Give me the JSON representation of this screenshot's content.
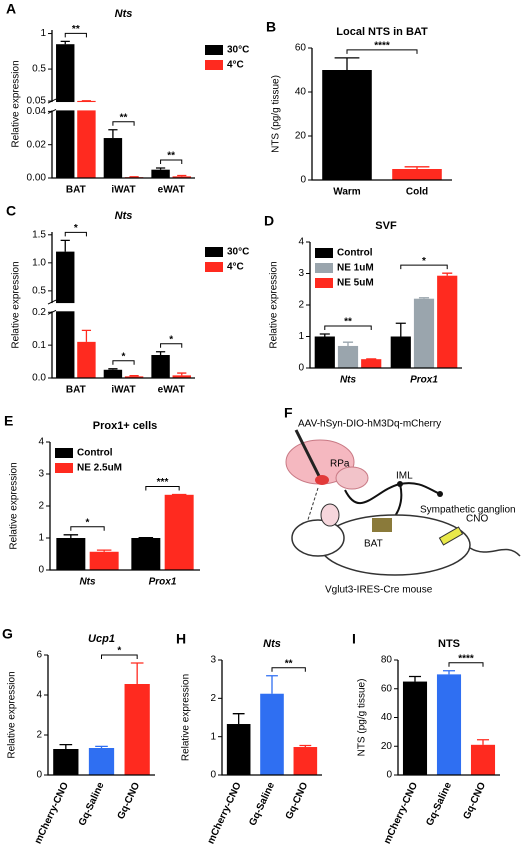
{
  "chart_data": [
    {
      "type": "bar",
      "panel": "A",
      "title": "Nts",
      "title_italic": true,
      "ylabel": "Relative expression",
      "categories": [
        "BAT",
        "iWAT",
        "eWAT"
      ],
      "series": [
        {
          "name": "30°C",
          "color": "#000000",
          "values": [
            0.85,
            0.024,
            0.005
          ],
          "errors": [
            0.04,
            0.005,
            0.001
          ]
        },
        {
          "name": "4°C",
          "color": "#ff2a1f",
          "values": [
            0.052,
            0.0005,
            0.001
          ],
          "errors": [
            0.002,
            0.0002,
            0.0005
          ]
        }
      ],
      "ylim": [
        0,
        1.05
      ],
      "ybreak": [
        0.04,
        0.05
      ],
      "yticks": [
        {
          "value": 0,
          "label": "0.00"
        },
        0.02,
        0.04,
        0.05,
        0.5,
        1
      ],
      "legend": "right",
      "annotations": [
        {
          "text": "**",
          "category": 0
        },
        {
          "text": "**",
          "category": 1
        },
        {
          "text": "**",
          "category": 2
        }
      ]
    },
    {
      "type": "bar",
      "panel": "B",
      "title": "Local NTS in BAT",
      "ylabel": "NTS (pg/g tissue)",
      "categories": [
        "Warm",
        "Cold"
      ],
      "series": [
        {
          "colors": [
            "#000000",
            "#ff2a1f"
          ],
          "values": [
            50,
            5
          ],
          "errors": [
            5.5,
            1
          ]
        }
      ],
      "ylim": [
        0,
        60
      ],
      "yticks": [
        0,
        20,
        40,
        60
      ],
      "annotations": [
        {
          "text": "****",
          "categories": [
            0,
            1
          ]
        }
      ]
    },
    {
      "type": "bar",
      "panel": "C",
      "title": "Nts",
      "title_italic": true,
      "ylabel": "Relative expression",
      "categories": [
        "BAT",
        "iWAT",
        "eWAT"
      ],
      "series": [
        {
          "name": "30°C",
          "color": "#000000",
          "values": [
            1.2,
            0.025,
            0.07
          ],
          "errors": [
            0.2,
            0.003,
            0.01
          ]
        },
        {
          "name": "4°C",
          "color": "#ff2a1f",
          "values": [
            0.11,
            0.005,
            0.008
          ],
          "errors": [
            0.035,
            0.002,
            0.007
          ]
        }
      ],
      "ylim": [
        0,
        1.55
      ],
      "ybreak": [
        0.2,
        0.3
      ],
      "yticks": [
        {
          "value": 0,
          "label": "0.0"
        },
        0.1,
        0.2,
        0.5,
        {
          "value": 1,
          "label": "1.0"
        },
        1.5
      ],
      "legend": "right",
      "annotations": [
        {
          "text": "*",
          "category": 0
        },
        {
          "text": "*",
          "category": 1
        },
        {
          "text": "*",
          "category": 2
        }
      ]
    },
    {
      "type": "bar",
      "panel": "D",
      "title": "SVF",
      "ylabel": "Relative expression",
      "categories": [
        "Nts",
        "Prox1"
      ],
      "category_italic": true,
      "series": [
        {
          "name": "Control",
          "color": "#000000",
          "values": [
            1.0,
            1.0
          ],
          "errors": [
            0.08,
            0.42
          ]
        },
        {
          "name": "NE 1uM",
          "color": "#9aa5ad",
          "values": [
            0.7,
            2.2
          ],
          "errors": [
            0.12,
            0.03
          ]
        },
        {
          "name": "NE 5uM",
          "color": "#ff2a1f",
          "values": [
            0.28,
            2.93
          ],
          "errors": [
            0.01,
            0.08
          ]
        }
      ],
      "ylim": [
        0,
        4
      ],
      "yticks": [
        0,
        1,
        2,
        3,
        4
      ],
      "legend": "upper left",
      "annotations": [
        {
          "text": "**",
          "category": 0
        },
        {
          "text": "*",
          "category": 1
        }
      ]
    },
    {
      "type": "bar",
      "panel": "E",
      "title": "Prox1+ cells",
      "ylabel": "Relative expression",
      "categories": [
        "Nts",
        "Prox1"
      ],
      "category_italic": true,
      "series": [
        {
          "name": "Control",
          "color": "#000000",
          "values": [
            1.0,
            1.0
          ],
          "errors": [
            0.1,
            0.01
          ]
        },
        {
          "name": "NE 2.5uM",
          "color": "#ff2a1f",
          "values": [
            0.57,
            2.35
          ],
          "errors": [
            0.05,
            0.01
          ]
        }
      ],
      "ylim": [
        0,
        4
      ],
      "yticks": [
        0,
        1,
        2,
        3,
        4
      ],
      "legend": "upper left",
      "annotations": [
        {
          "text": "*",
          "category": 0
        },
        {
          "text": "***",
          "category": 1
        }
      ]
    },
    {
      "type": "bar",
      "panel": "G",
      "title": "Ucp1",
      "title_italic": true,
      "ylabel": "Relative expression",
      "categories": [
        "mCherry-CNO",
        "Gq-Saline",
        "Gq-CNO"
      ],
      "rotate_labels": true,
      "series": [
        {
          "colors": [
            "#000000",
            "#2f6ff2",
            "#ff2a1f"
          ],
          "values": [
            1.3,
            1.35,
            4.55
          ],
          "errors": [
            0.22,
            0.08,
            1.05
          ]
        }
      ],
      "ylim": [
        0,
        6
      ],
      "yticks": [
        0,
        2,
        4,
        6
      ],
      "annotations": [
        {
          "text": "*",
          "categories": [
            1,
            2
          ]
        }
      ]
    },
    {
      "type": "bar",
      "panel": "H",
      "title": "Nts",
      "title_italic": true,
      "ylabel": "Relative expression",
      "categories": [
        "mCherry-CNO",
        "Gq-Saline",
        "Gq-CNO"
      ],
      "rotate_labels": true,
      "series": [
        {
          "colors": [
            "#000000",
            "#2f6ff2",
            "#ff2a1f"
          ],
          "values": [
            1.33,
            2.12,
            0.73
          ],
          "errors": [
            0.27,
            0.47,
            0.04
          ]
        }
      ],
      "ylim": [
        0,
        3
      ],
      "yticks": [
        0,
        1,
        2,
        3
      ],
      "annotations": [
        {
          "text": "**",
          "categories": [
            1,
            2
          ]
        }
      ]
    },
    {
      "type": "bar",
      "panel": "I",
      "title": "NTS",
      "ylabel": "NTS (pg/g tissue)",
      "categories": [
        "mCherry-CNO",
        "Gq-Saline",
        "Gq-CNO"
      ],
      "rotate_labels": true,
      "series": [
        {
          "colors": [
            "#000000",
            "#2f6ff2",
            "#ff2a1f"
          ],
          "values": [
            65,
            70,
            21
          ],
          "errors": [
            3.5,
            2.5,
            3.5
          ]
        }
      ],
      "ylim": [
        0,
        80
      ],
      "yticks": [
        0,
        20,
        40,
        60,
        80
      ],
      "annotations": [
        {
          "text": "****",
          "categories": [
            1,
            2
          ]
        }
      ]
    }
  ],
  "diagram": {
    "panel": "F",
    "labels": {
      "virus": "AAV-hSyn-DIO-hM3Dq-mCherry",
      "rpa": "RPa",
      "iml": "IML",
      "ganglion": "Sympathetic ganglion",
      "bat": "BAT",
      "cno": "CNO",
      "mouse": "Vglut3-IRES-Cre mouse"
    }
  }
}
